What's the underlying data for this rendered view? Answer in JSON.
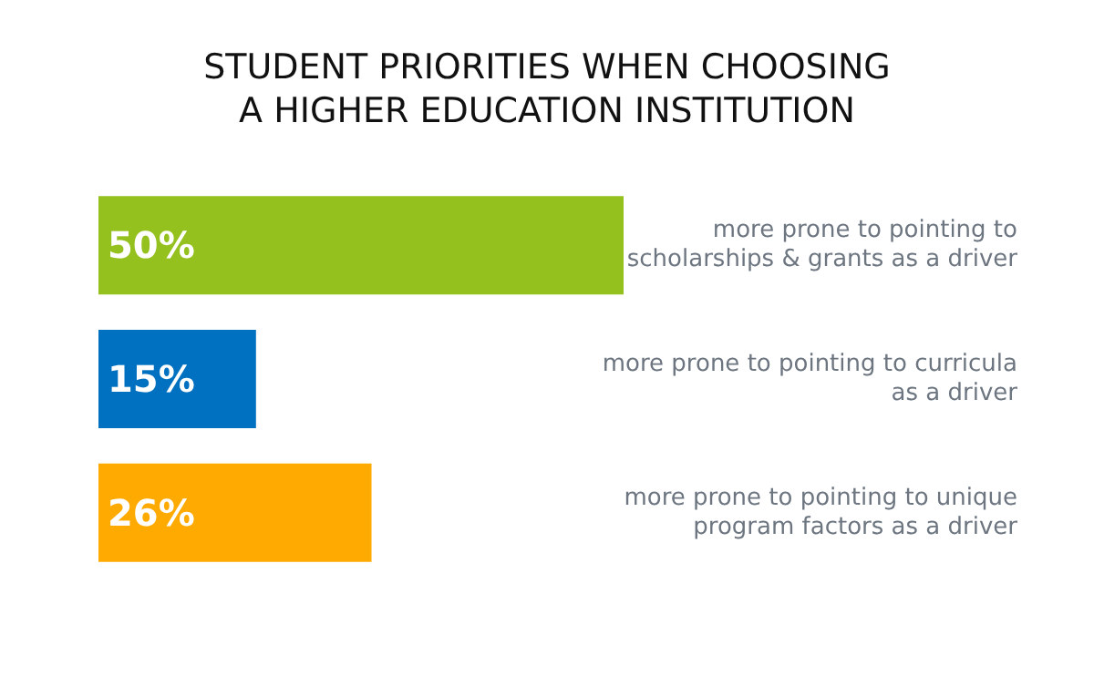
{
  "chart_data": {
    "type": "bar",
    "orientation": "horizontal",
    "title": "STUDENT PRIORITIES WHEN CHOOSING\nA HIGHER EDUCATION INSTITUTION",
    "categories": [
      "more prone to pointing to\nscholarships & grants as a driver",
      "more prone to pointing to curricula\nas a driver",
      "more prone to pointing to unique\nprogram factors as a driver"
    ],
    "values": [
      50,
      15,
      26
    ],
    "colors": [
      "#95c11f",
      "#0070c0",
      "#ffaa00"
    ],
    "value_labels": [
      "50%",
      "15%",
      "26%"
    ]
  }
}
